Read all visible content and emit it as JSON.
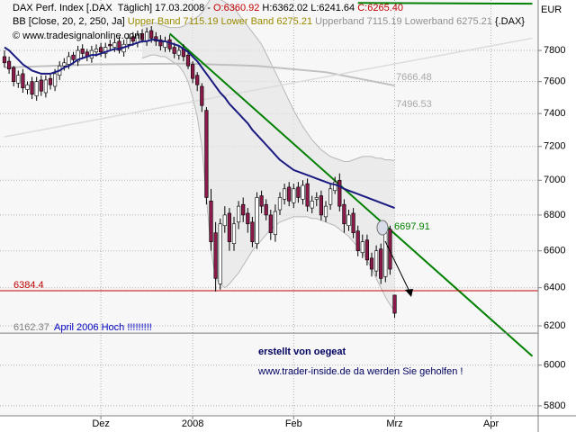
{
  "chart_data": {
    "type": "candlestick",
    "header": [
      [
        {
          "text": "DAX Perf. Index [.DAX  Täglich] 17.03.2008 - ",
          "color": "#000000"
        },
        {
          "text": "O:6360.92",
          "color": "#c00000"
        },
        {
          "text": " H:6362.02 L:6241.64 ",
          "color": "#000000"
        },
        {
          "text": "C:6265.40",
          "color": "#c00000"
        }
      ],
      [
        {
          "text": "BB [Close, 20, 2, 250, Ja] ",
          "color": "#000000"
        },
        {
          "text": "Upper Band 7115.19 Lower Band 6275.21 ",
          "color": "#9a8a00"
        },
        {
          "text": "Upperband 7115.19 Lowerband 6275.21 ",
          "color": "#909090"
        },
        {
          "text": "{.DAX}",
          "color": "#000000"
        }
      ],
      [
        {
          "text": "© www.tradesignalonline.com",
          "color": "#000000"
        }
      ]
    ],
    "categories": [
      null,
      null,
      null,
      null,
      null,
      null,
      null,
      null,
      null,
      null,
      null,
      null,
      null,
      null,
      null,
      null,
      null,
      null,
      null,
      null,
      null,
      "Dez",
      null,
      null,
      null,
      null,
      null,
      null,
      null,
      null,
      null,
      null,
      null,
      null,
      null,
      null,
      null,
      null,
      null,
      null,
      null,
      "2008",
      null,
      null,
      null,
      null,
      null,
      null,
      null,
      null,
      null,
      null,
      null,
      null,
      null,
      null,
      null,
      null,
      null,
      null,
      null,
      null,
      null,
      "Feb",
      null,
      null,
      null,
      null,
      null,
      null,
      null,
      null,
      null,
      null,
      null,
      null,
      null,
      null,
      null,
      null,
      null,
      null,
      null,
      null,
      null,
      "Mrz",
      null,
      null,
      null,
      null,
      null,
      null,
      null,
      null,
      null,
      null,
      null,
      null,
      null,
      null,
      null,
      null,
      null,
      null,
      null,
      null,
      "Apr",
      null,
      null,
      null,
      null,
      null,
      null,
      null,
      null,
      null
    ],
    "open": [
      7760,
      7730,
      7690,
      7590,
      7650,
      7550,
      7600,
      7510,
      7610,
      7530,
      7620,
      7570,
      7640,
      7700,
      7710,
      7770,
      7730,
      7810,
      7790,
      7750,
      7790,
      7820,
      7780,
      7840,
      7820,
      7860,
      7790,
      7840,
      7890,
      7850,
      7910,
      7860,
      7930,
      7890,
      7870,
      7820,
      7870,
      7820,
      7770,
      7810,
      7770,
      7710,
      7640,
      7570,
      7420,
      6880,
      6700,
      6420,
      6740,
      6810,
      6640,
      6760,
      6860,
      6810,
      6760,
      6640,
      6910,
      6860,
      6800,
      6690,
      6830,
      6890,
      6960,
      6870,
      6960,
      6890,
      6980,
      6840,
      6890,
      6910,
      6790,
      6860,
      6940,
      7000,
      6860,
      6740,
      6810,
      6710,
      6590,
      6660,
      6560,
      6490,
      6610,
      6460,
      6720,
      6360.92,
      null,
      null,
      null,
      null,
      null,
      null,
      null,
      null,
      null,
      null,
      null,
      null,
      null,
      null,
      null,
      null,
      null,
      null,
      null,
      null,
      null,
      null,
      null,
      null,
      null,
      null,
      null,
      null,
      null,
      null
    ],
    "high": [
      7800,
      7760,
      7700,
      7670,
      7680,
      7600,
      7630,
      7630,
      7640,
      7640,
      7650,
      7680,
      7730,
      7750,
      7790,
      7790,
      7830,
      7840,
      7810,
      7830,
      7840,
      7850,
      7850,
      7870,
      7880,
      7890,
      7870,
      7910,
      7920,
      7930,
      7940,
      7950,
      7960,
      7920,
      7900,
      7890,
      7900,
      7850,
      7830,
      7840,
      7800,
      7730,
      7660,
      7590,
      7440,
      6950,
      6760,
      6780,
      6850,
      6840,
      6790,
      6880,
      6900,
      6840,
      6790,
      6930,
      6940,
      6890,
      6830,
      6860,
      6930,
      6980,
      6990,
      6980,
      6990,
      7000,
      7010,
      6910,
      6930,
      6940,
      6880,
      6980,
      7020,
      7040,
      6890,
      6830,
      6840,
      6740,
      6690,
      6690,
      6590,
      6630,
      6640,
      6740,
      6740,
      6362.02,
      null,
      null,
      null,
      null,
      null,
      null,
      null,
      null,
      null,
      null,
      null,
      null,
      null,
      null,
      null,
      null,
      null,
      null,
      null,
      null,
      null,
      null,
      null,
      null,
      null,
      null,
      null,
      null,
      null,
      null
    ],
    "low": [
      7690,
      7650,
      7570,
      7560,
      7530,
      7520,
      7490,
      7480,
      7510,
      7500,
      7550,
      7540,
      7610,
      7670,
      7680,
      7710,
      7700,
      7750,
      7730,
      7720,
      7760,
      7760,
      7750,
      7800,
      7790,
      7780,
      7760,
      7810,
      7830,
      7820,
      7850,
      7830,
      7850,
      7830,
      7800,
      7790,
      7790,
      7750,
      7740,
      7730,
      7680,
      7590,
      7540,
      7410,
      6860,
      6600,
      6380,
      6390,
      6700,
      6600,
      6600,
      6720,
      6760,
      6700,
      6620,
      6610,
      6810,
      6770,
      6660,
      6650,
      6800,
      6860,
      6850,
      6840,
      6870,
      6860,
      6820,
      6810,
      6850,
      6770,
      6760,
      6830,
      6920,
      6820,
      6700,
      6710,
      6670,
      6570,
      6560,
      6520,
      6460,
      6460,
      6420,
      6430,
      6470,
      6241.64,
      null,
      null,
      null,
      null,
      null,
      null,
      null,
      null,
      null,
      null,
      null,
      null,
      null,
      null,
      null,
      null,
      null,
      null,
      null,
      null,
      null,
      null,
      null,
      null,
      null,
      null,
      null,
      null,
      null,
      null
    ],
    "close": [
      7720,
      7680,
      7600,
      7640,
      7560,
      7580,
      7520,
      7600,
      7540,
      7610,
      7580,
      7650,
      7700,
      7720,
      7760,
      7740,
      7800,
      7780,
      7760,
      7800,
      7810,
      7790,
      7820,
      7830,
      7850,
      7800,
      7840,
      7880,
      7860,
      7900,
      7870,
      7920,
      7880,
      7860,
      7830,
      7860,
      7810,
      7780,
      7800,
      7760,
      7700,
      7620,
      7580,
      7450,
      6900,
      6650,
      6450,
      6750,
      6800,
      6650,
      6750,
      6850,
      6800,
      6750,
      6650,
      6900,
      6850,
      6800,
      6700,
      6820,
      6900,
      6950,
      6880,
      6950,
      6900,
      6970,
      6850,
      6880,
      6900,
      6800,
      6850,
      6950,
      6990,
      6850,
      6750,
      6800,
      6700,
      6600,
      6650,
      6550,
      6500,
      6600,
      6450,
      6700,
      6500,
      6265.4,
      null,
      null,
      null,
      null,
      null,
      null,
      null,
      null,
      null,
      null,
      null,
      null,
      null,
      null,
      null,
      null,
      null,
      null,
      null,
      null,
      null,
      null,
      null,
      null,
      null,
      null,
      null,
      null,
      null,
      null
    ],
    "ma": {
      "color": "#1a1a80",
      "values": [
        7820,
        7800,
        7770,
        7740,
        7710,
        7690,
        7670,
        7660,
        7650,
        7650,
        7650,
        7660,
        7670,
        7690,
        7700,
        7720,
        7740,
        7750,
        7760,
        7770,
        7770,
        7780,
        7790,
        7800,
        7810,
        7810,
        7820,
        7830,
        7840,
        7850,
        7860,
        7860,
        7870,
        7870,
        7860,
        7860,
        7850,
        7840,
        7830,
        7810,
        7790,
        7760,
        7730,
        7690,
        7650,
        7610,
        7570,
        7530,
        7500,
        7460,
        7430,
        7400,
        7370,
        7340,
        7300,
        7270,
        7240,
        7210,
        7180,
        7150,
        7120,
        7100,
        7080,
        7060,
        7050,
        7040,
        7030,
        7020,
        7010,
        7000,
        6990,
        6980,
        6975,
        6965,
        6950,
        6940,
        6930,
        6920,
        6910,
        6900,
        6890,
        6880,
        6870,
        6860,
        6850,
        6840,
        null,
        null,
        null,
        null,
        null,
        null,
        null,
        null,
        null,
        null,
        null,
        null,
        null,
        null,
        null,
        null,
        null,
        null,
        null,
        null,
        null,
        null,
        null,
        null,
        null,
        null,
        null,
        null,
        null,
        null
      ]
    },
    "upper_band": {
      "color": "#b8b8b8",
      "values": [
        null,
        null,
        null,
        null,
        null,
        null,
        null,
        null,
        null,
        null,
        null,
        null,
        null,
        null,
        null,
        null,
        null,
        null,
        null,
        null,
        null,
        null,
        null,
        null,
        null,
        null,
        null,
        null,
        null,
        null,
        7960,
        7970,
        7980,
        7980,
        7970,
        7960,
        7950,
        7950,
        7950,
        7960,
        7980,
        8000,
        8020,
        8050,
        8100,
        8150,
        8150,
        8140,
        8120,
        8100,
        8080,
        8040,
        8000,
        7960,
        7920,
        7880,
        7840,
        7780,
        7720,
        7660,
        7600,
        7540,
        7480,
        7420,
        7370,
        7320,
        7280,
        7240,
        7210,
        7180,
        7160,
        7140,
        7130,
        7120,
        7110,
        7110,
        7120,
        7130,
        7140,
        7140,
        7140,
        7130,
        7130,
        7120,
        7120,
        7115.19,
        null,
        null,
        null,
        null,
        null,
        null,
        null,
        null,
        null,
        null,
        null,
        null,
        null,
        null,
        null,
        null,
        null,
        null,
        null,
        null,
        null,
        null,
        null,
        null,
        null,
        null,
        null,
        null,
        null,
        null
      ]
    },
    "lower_band": {
      "color": "#b8b8b8",
      "values": [
        null,
        null,
        null,
        null,
        null,
        null,
        null,
        null,
        null,
        null,
        null,
        null,
        null,
        null,
        null,
        null,
        null,
        null,
        null,
        null,
        null,
        null,
        null,
        null,
        null,
        null,
        null,
        null,
        null,
        null,
        7750,
        7760,
        7770,
        7770,
        7760,
        7760,
        7740,
        7720,
        7700,
        7660,
        7600,
        7500,
        7380,
        7200,
        6900,
        6600,
        6450,
        6420,
        6400,
        6420,
        6450,
        6480,
        6520,
        6560,
        6600,
        6630,
        6660,
        6690,
        6720,
        6740,
        6760,
        6770,
        6780,
        6790,
        6790,
        6790,
        6790,
        6780,
        6780,
        6770,
        6760,
        6750,
        6740,
        6720,
        6700,
        6680,
        6650,
        6620,
        6590,
        6550,
        6500,
        6450,
        6400,
        6350,
        6310,
        6275.21,
        null,
        null,
        null,
        null,
        null,
        null,
        null,
        null,
        null,
        null,
        null,
        null,
        null,
        null,
        null,
        null,
        null,
        null,
        null,
        null,
        null,
        null,
        null,
        null,
        null,
        null,
        null,
        null,
        null,
        null
      ]
    },
    "lines": [
      {
        "color": "#c0c0c0",
        "width": 2,
        "x": [
          0,
          20,
          40,
          55,
          70,
          85
        ],
        "values": [
          7690,
          7710,
          7715,
          7700,
          7660,
          7575
        ]
      },
      {
        "color": "#dcdcdc",
        "width": 1.5,
        "x": [
          0,
          115
        ],
        "values": [
          7258,
          7880
        ]
      },
      {
        "color": "#008000",
        "width": 2,
        "x": [
          36,
          115
        ],
        "values": [
          7910,
          6045
        ]
      },
      {
        "color": "#008000",
        "width": 2,
        "x": [
          77,
          115
        ],
        "values": [
          8115,
          8110
        ]
      }
    ],
    "hlines": [
      {
        "value": 6384.4,
        "label": "6384.4",
        "color": "#c00000"
      },
      {
        "value": 6162.37,
        "label": "6162.37",
        "color": "#808080"
      }
    ],
    "annotations": [
      {
        "text": "7666.48",
        "color": "#a8a8a8"
      },
      {
        "text": "7496.53",
        "color": "#a8a8a8"
      },
      {
        "text": "6697.91",
        "color": "#008000"
      },
      {
        "text": "April 2006 Hoch !!!!!!!!!",
        "color": "#0000c0"
      },
      {
        "text": "erstellt von oegeat",
        "color": "#000060",
        "bold": true
      },
      {
        "text": "www.trader-inside.de da werden Sie geholfen !",
        "color": "#000060"
      },
      {
        "text": "EUR",
        "color": "#000000"
      }
    ],
    "up_color": "#ffffff",
    "down_color": "#8b1a4a",
    "ylim": [
      5752,
      8135
    ],
    "yticks": [
      5800,
      6000,
      6200,
      6400,
      6600,
      6800,
      7000,
      7200,
      7400,
      7600,
      7800
    ],
    "log_scale": true,
    "grid": true
  }
}
